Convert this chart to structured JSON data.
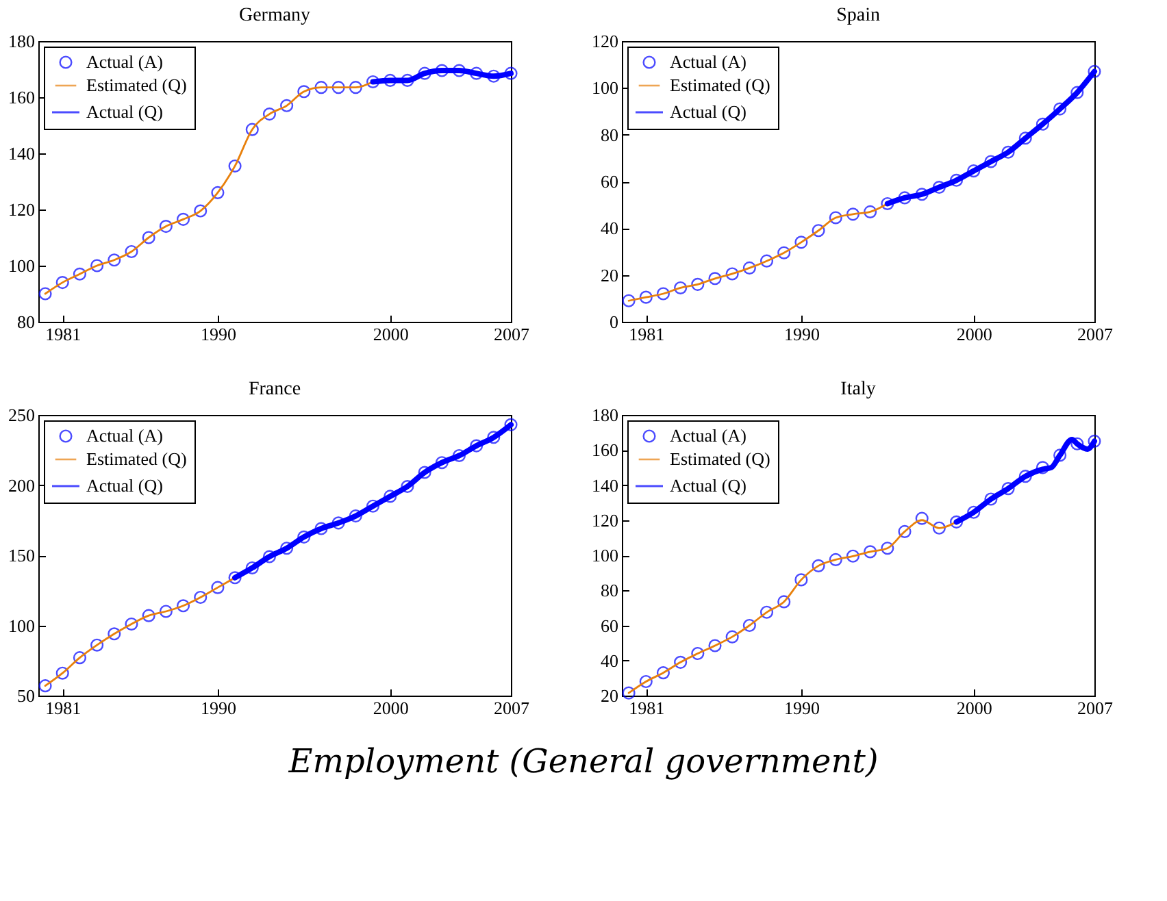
{
  "chart_data": [
    {
      "type": "line",
      "title": "Germany",
      "xlim": [
        1979.6,
        2007
      ],
      "xticks": [
        1981,
        1990,
        2000,
        2007
      ],
      "ylim": [
        80,
        180
      ],
      "yticks": [
        80,
        100,
        120,
        140,
        160,
        180
      ],
      "legend": "top left",
      "grid": false,
      "series": [
        {
          "name": "Actual (A)",
          "type": "scatter",
          "marker": "circle",
          "color": "#0000ff",
          "x": [
            1980,
            1981,
            1982,
            1983,
            1984,
            1985,
            1986,
            1987,
            1988,
            1989,
            1990,
            1991,
            1992,
            1993,
            1994,
            1995,
            1996,
            1997,
            1998,
            1999,
            2000,
            2001,
            2002,
            2003,
            2004,
            2005,
            2006,
            2007
          ],
          "values": [
            90,
            94,
            97,
            100,
            102,
            105,
            110,
            114,
            116.5,
            119.5,
            126,
            135.5,
            148.5,
            154,
            157,
            162,
            163.5,
            163.5,
            163.5,
            165.5,
            166,
            166,
            168.5,
            169.5,
            169.5,
            168.5,
            167.5,
            168.5
          ]
        },
        {
          "name": "Estimated (Q)",
          "color": "#e8800c",
          "x": [
            1980,
            1981,
            1982,
            1983,
            1984,
            1985,
            1986,
            1987,
            1988,
            1989,
            1990,
            1991,
            1992,
            1993,
            1994,
            1995,
            1996,
            1997,
            1998,
            1999
          ],
          "values": [
            90,
            94,
            97,
            100,
            102,
            105,
            110,
            114,
            116.5,
            119.5,
            126,
            135.5,
            148.5,
            154,
            157,
            162,
            163.5,
            163.5,
            163.5,
            165.5
          ]
        },
        {
          "name": "Actual (Q)",
          "color": "#0000ff",
          "x": [
            1999,
            2000,
            2001,
            2002,
            2003,
            2004,
            2005,
            2006,
            2007
          ],
          "values": [
            165.5,
            166,
            166,
            168.5,
            169.5,
            169.5,
            168.5,
            167.5,
            168.5
          ]
        }
      ]
    },
    {
      "type": "line",
      "title": "Spain",
      "xlim": [
        1979.6,
        2007
      ],
      "xticks": [
        1981,
        1990,
        2000,
        2007
      ],
      "ylim": [
        0,
        120
      ],
      "yticks": [
        0,
        20,
        40,
        60,
        80,
        100,
        120
      ],
      "legend": "top left",
      "grid": false,
      "series": [
        {
          "name": "Actual (A)",
          "type": "scatter",
          "marker": "circle",
          "color": "#0000ff",
          "x": [
            1980,
            1981,
            1982,
            1983,
            1984,
            1985,
            1986,
            1987,
            1988,
            1989,
            1990,
            1991,
            1992,
            1993,
            1994,
            1995,
            1996,
            1997,
            1998,
            1999,
            2000,
            2001,
            2002,
            2003,
            2004,
            2005,
            2006,
            2007
          ],
          "values": [
            9,
            10.5,
            12,
            14.5,
            16,
            18.5,
            20.5,
            23,
            26,
            29.5,
            34,
            39,
            44.5,
            46,
            47,
            50.5,
            53,
            54.5,
            57.5,
            60.5,
            64.5,
            68.5,
            72.5,
            78.5,
            84.5,
            91,
            98,
            107
          ]
        },
        {
          "name": "Estimated (Q)",
          "color": "#e8800c",
          "x": [
            1980,
            1981,
            1982,
            1983,
            1984,
            1985,
            1986,
            1987,
            1988,
            1989,
            1990,
            1991,
            1992,
            1993,
            1994,
            1995
          ],
          "values": [
            9,
            10.5,
            12,
            14.5,
            16,
            18.5,
            20.5,
            23,
            26,
            29.5,
            34,
            39,
            44.5,
            46,
            47,
            50.5
          ]
        },
        {
          "name": "Actual (Q)",
          "color": "#0000ff",
          "x": [
            1995,
            1996,
            1997,
            1998,
            1999,
            2000,
            2001,
            2002,
            2003,
            2004,
            2005,
            2006,
            2007
          ],
          "values": [
            50.5,
            53,
            54.5,
            57.5,
            60.5,
            64.5,
            68.5,
            72.5,
            78.5,
            84.5,
            91,
            98,
            107
          ]
        }
      ]
    },
    {
      "type": "line",
      "title": "France",
      "xlim": [
        1979.6,
        2007
      ],
      "xticks": [
        1981,
        1990,
        2000,
        2007
      ],
      "ylim": [
        50,
        250
      ],
      "yticks": [
        50,
        100,
        150,
        200,
        250
      ],
      "legend": "top left",
      "grid": false,
      "series": [
        {
          "name": "Actual (A)",
          "type": "scatter",
          "marker": "circle",
          "color": "#0000ff",
          "x": [
            1980,
            1981,
            1982,
            1983,
            1984,
            1985,
            1986,
            1987,
            1988,
            1989,
            1990,
            1991,
            1992,
            1993,
            1994,
            1995,
            1996,
            1997,
            1998,
            1999,
            2000,
            2001,
            2002,
            2003,
            2004,
            2005,
            2006,
            2007
          ],
          "values": [
            57,
            66,
            77,
            86,
            94,
            101,
            107,
            110,
            114,
            120,
            127,
            134,
            141,
            149,
            155,
            163,
            169,
            173,
            178,
            185,
            192,
            199,
            209,
            216,
            221,
            228,
            234,
            243
          ]
        },
        {
          "name": "Estimated (Q)",
          "color": "#e8800c",
          "x": [
            1980,
            1981,
            1982,
            1983,
            1984,
            1985,
            1986,
            1987,
            1988,
            1989,
            1990,
            1991
          ],
          "values": [
            57,
            66,
            77,
            86,
            94,
            101,
            107,
            110,
            114,
            120,
            127,
            134
          ]
        },
        {
          "name": "Actual (Q)",
          "color": "#0000ff",
          "x": [
            1991,
            1992,
            1993,
            1994,
            1995,
            1996,
            1997,
            1998,
            1999,
            2000,
            2001,
            2002,
            2003,
            2004,
            2005,
            2006,
            2007
          ],
          "values": [
            134,
            141,
            149,
            155,
            163,
            169,
            173,
            178,
            185,
            192,
            199,
            209,
            216,
            221,
            228,
            234,
            243
          ]
        }
      ]
    },
    {
      "type": "line",
      "title": "Italy",
      "xlim": [
        1979.6,
        2007
      ],
      "xticks": [
        1981,
        1990,
        2000,
        2007
      ],
      "ylim": [
        20,
        180
      ],
      "yticks": [
        20,
        40,
        60,
        80,
        100,
        120,
        140,
        160,
        180
      ],
      "legend": "top left",
      "grid": false,
      "annotations": [
        "Employment (General government)"
      ],
      "series": [
        {
          "name": "Actual (A)",
          "type": "scatter",
          "marker": "circle",
          "color": "#0000ff",
          "x": [
            1980,
            1981,
            1982,
            1983,
            1984,
            1985,
            1986,
            1987,
            1988,
            1989,
            1990,
            1991,
            1992,
            1993,
            1994,
            1995,
            1996,
            1997,
            1998,
            1999,
            2000,
            2001,
            2002,
            2003,
            2004,
            2005,
            2006,
            2007
          ],
          "values": [
            21.5,
            28,
            33,
            39,
            44,
            48.5,
            53.5,
            60,
            67.5,
            73.5,
            86,
            94,
            97.5,
            99.5,
            102,
            104,
            113.5,
            121,
            115.5,
            119,
            124.5,
            132,
            138,
            145,
            150,
            157,
            163.5,
            165
          ]
        },
        {
          "name": "Estimated (Q)",
          "color": "#e8800c",
          "x": [
            1980,
            1981,
            1982,
            1983,
            1984,
            1985,
            1986,
            1987,
            1988,
            1989,
            1990,
            1991,
            1992,
            1993,
            1994,
            1995,
            1996,
            1997,
            1998,
            1999
          ],
          "values": [
            21.5,
            28,
            33,
            39,
            44,
            48.5,
            53.5,
            60,
            67.5,
            73.5,
            86,
            94,
            97.5,
            99.5,
            102,
            104,
            113.5,
            120,
            115.5,
            119
          ]
        },
        {
          "name": "Actual (Q)",
          "color": "#0000ff",
          "x": [
            1999,
            2000,
            2001,
            2002,
            2003,
            2004,
            2004.5,
            2005,
            2005.7,
            2006,
            2006.6,
            2007
          ],
          "values": [
            119,
            124.5,
            132,
            138,
            145,
            149,
            150,
            157,
            166,
            163.5,
            160.5,
            165
          ]
        }
      ]
    }
  ]
}
